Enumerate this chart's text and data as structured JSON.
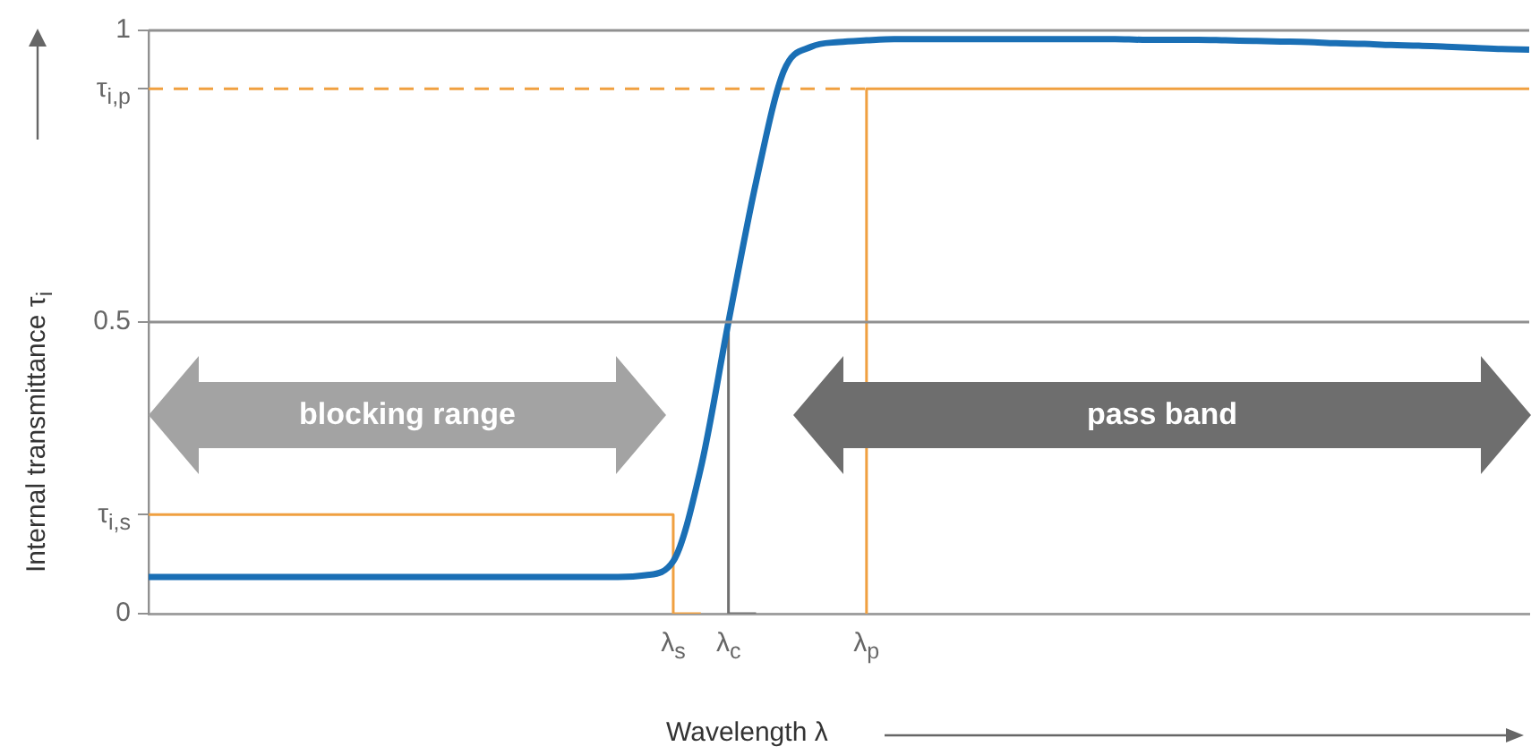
{
  "chart_data": {
    "type": "line",
    "xlabel": "Wavelength λ",
    "ylabel": "Internal transmittance τ$_{i}$",
    "categories": [
      null,
      null,
      null,
      null,
      null,
      null,
      null,
      null,
      null,
      null,
      null,
      null,
      null,
      null,
      null,
      null,
      null,
      null,
      null,
      "λ$_{s}$",
      null,
      "λ$_{c}$",
      null,
      null,
      null,
      null,
      "λ$_{p}$",
      null,
      null,
      null,
      null,
      null,
      null,
      null,
      null,
      null,
      null,
      null,
      null,
      null,
      null,
      null,
      null,
      null,
      null,
      null,
      null,
      null,
      null,
      null,
      null
    ],
    "ylim": [
      0,
      1
    ],
    "yticks": [
      0,
      {
        "value": 0.17,
        "label": "τ$_{i,s}$"
      },
      0.5,
      {
        "value": 0.9,
        "label": "τ$_{i,p}$"
      },
      1
    ],
    "series": [
      {
        "color": "#1a6fb5",
        "values": [
          0.063,
          0.063,
          0.063,
          0.063,
          0.063,
          0.063,
          0.063,
          0.063,
          0.063,
          0.063,
          0.063,
          0.063,
          0.063,
          0.063,
          0.063,
          0.063,
          0.063,
          0.063,
          0.066,
          0.09,
          0.25,
          0.5,
          0.74,
          0.93,
          0.972,
          0.98,
          0.983,
          0.985,
          0.985,
          0.985,
          0.985,
          0.985,
          0.985,
          0.985,
          0.985,
          0.985,
          0.984,
          0.984,
          0.984,
          0.983,
          0.982,
          0.981,
          0.98,
          0.978,
          0.977,
          0.975,
          0.974,
          0.972,
          0.97,
          0.968,
          0.967
        ]
      },
      {
        "type": "step",
        "color": "#f0a040",
        "values": [
          0.17,
          0.17,
          0.17,
          0.17,
          0.17,
          0.17,
          0.17,
          0.17,
          0.17,
          0.17,
          0.17,
          0.17,
          0.17,
          0.17,
          0.17,
          0.17,
          0.17,
          0.17,
          0.17,
          0.17,
          0,
          null,
          null,
          null,
          null,
          null,
          null,
          null,
          null,
          null,
          null,
          null,
          null,
          null,
          null,
          null,
          null,
          null,
          null,
          null,
          null,
          null,
          null,
          null,
          null,
          null,
          null,
          null,
          null,
          null,
          null
        ]
      },
      {
        "type": "line",
        "color": "#f0a040",
        "line_style": "dashed",
        "values": [
          0.9,
          0.9,
          0.9,
          0.9,
          0.9,
          0.9,
          0.9,
          0.9,
          0.9,
          0.9,
          0.9,
          0.9,
          0.9,
          0.9,
          0.9,
          0.9,
          0.9,
          0.9,
          0.9,
          0.9,
          0.9,
          0.9,
          0.9,
          0.9,
          0.9,
          0.9,
          0.9,
          null,
          null,
          null,
          null,
          null,
          null,
          null,
          null,
          null,
          null,
          null,
          null,
          null,
          null,
          null,
          null,
          null,
          null,
          null,
          null,
          null,
          null,
          null,
          null
        ]
      },
      {
        "type": "step",
        "color": "#f0a040",
        "values": [
          null,
          null,
          null,
          null,
          null,
          null,
          null,
          null,
          null,
          null,
          null,
          null,
          null,
          null,
          null,
          null,
          null,
          null,
          null,
          null,
          null,
          null,
          null,
          null,
          null,
          null,
          0,
          0.9,
          0.9,
          0.9,
          0.9,
          0.9,
          0.9,
          0.9,
          0.9,
          0.9,
          0.9,
          0.9,
          0.9,
          0.9,
          0.9,
          0.9,
          0.9,
          0.9,
          0.9,
          0.9,
          0.9,
          0.9,
          0.9,
          0.9,
          0.9
        ]
      },
      {
        "type": "step",
        "color": "#707070",
        "values": [
          null,
          null,
          null,
          null,
          null,
          null,
          null,
          null,
          null,
          null,
          null,
          null,
          null,
          null,
          null,
          null,
          null,
          null,
          null,
          null,
          null,
          0.5,
          0,
          null,
          null,
          null,
          null,
          null,
          null,
          null,
          null,
          null,
          null,
          null,
          null,
          null,
          null,
          null,
          null,
          null,
          null,
          null,
          null,
          null,
          null,
          null,
          null,
          null,
          null,
          null,
          null
        ]
      }
    ],
    "ref_lines": [
      {
        "axis": "y",
        "value": 0.5,
        "color": "#909090"
      }
    ],
    "annotations": [
      "blocking range",
      "pass band"
    ],
    "legend": false
  }
}
